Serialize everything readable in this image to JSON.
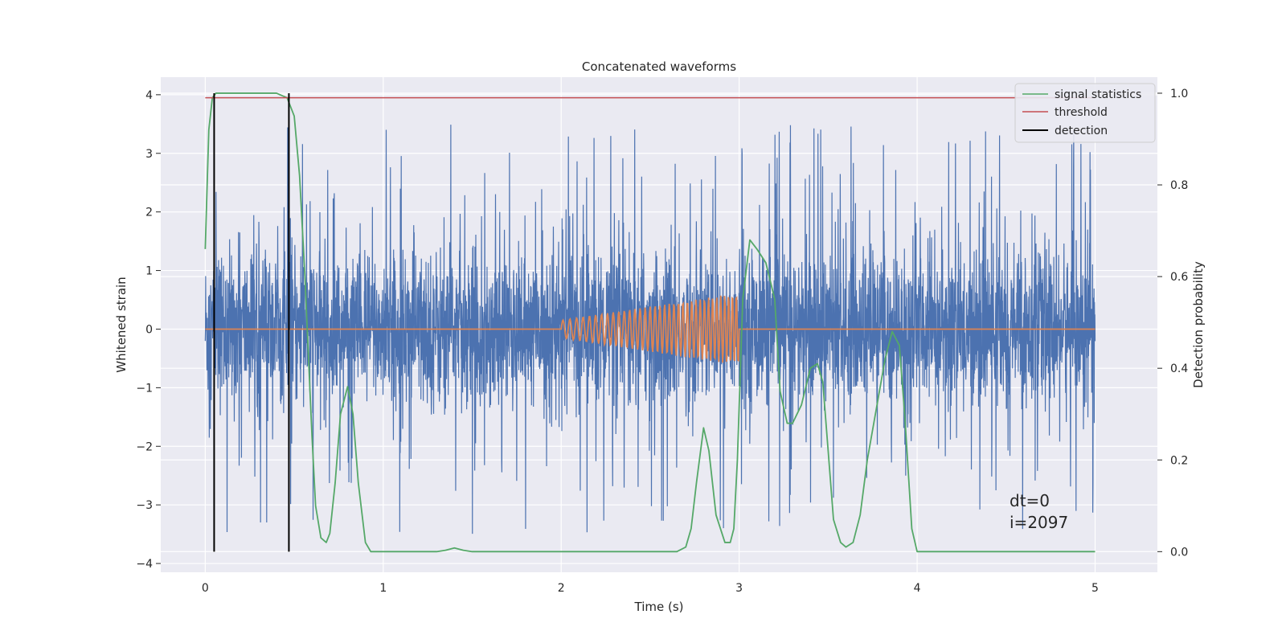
{
  "chart_data": {
    "type": "line",
    "title": "Concatenated waveforms",
    "xlabel": "Time (s)",
    "ylabel_left": "Whitened strain",
    "ylabel_right": "Detection probability",
    "xlim": [
      -0.25,
      5.35
    ],
    "ylim_left": [
      -4.15,
      4.3
    ],
    "ylim_right": [
      -0.045,
      1.035
    ],
    "x_ticks": [
      0,
      1,
      2,
      3,
      4,
      5
    ],
    "y_left_ticks": [
      4,
      3,
      2,
      1,
      0,
      -1,
      -2,
      -3,
      -4
    ],
    "y_left_tick_labels": [
      "4",
      "3",
      "2",
      "1",
      "0",
      "−1",
      "−2",
      "−3",
      "−4"
    ],
    "y_right_ticks": [
      1.0,
      0.8,
      0.6,
      0.4,
      0.2,
      0.0
    ],
    "y_right_tick_labels": [
      "1.0",
      "0.8",
      "0.6",
      "0.4",
      "0.2",
      "0.0"
    ],
    "grid": true,
    "legend_position": "top-right",
    "series": [
      {
        "name": "",
        "role": "whitened strain noise",
        "axis": "left",
        "color": "#4c72b0",
        "x_range": [
          0,
          5
        ],
        "core_amplitude": 0.65,
        "peak_min": -3.7,
        "peak_max": 3.9
      },
      {
        "name": "",
        "role": "injected chirp",
        "axis": "left",
        "color": "#dd8452",
        "x_range": [
          0,
          5
        ],
        "chirp_x_range": [
          2,
          3
        ],
        "amplitude_start": 0.15,
        "amplitude_end": 0.62
      },
      {
        "name": "signal statistics",
        "axis": "right",
        "color": "#55a868",
        "x": [
          0.0,
          0.02,
          0.04,
          0.06,
          0.1,
          0.2,
          0.4,
          0.46,
          0.5,
          0.53,
          0.56,
          0.6,
          0.62,
          0.65,
          0.68,
          0.7,
          0.73,
          0.76,
          0.8,
          0.83,
          0.86,
          0.9,
          0.93,
          0.97,
          1.2,
          1.3,
          1.35,
          1.4,
          1.45,
          1.5,
          1.7,
          2.0,
          2.5,
          2.65,
          2.7,
          2.73,
          2.76,
          2.8,
          2.83,
          2.87,
          2.92,
          2.95,
          2.97,
          2.99,
          3.02,
          3.06,
          3.1,
          3.15,
          3.2,
          3.23,
          3.27,
          3.3,
          3.35,
          3.4,
          3.44,
          3.47,
          3.5,
          3.53,
          3.57,
          3.6,
          3.64,
          3.68,
          3.72,
          3.77,
          3.82,
          3.86,
          3.9,
          3.93,
          3.97,
          4.0,
          4.5,
          5.0
        ],
        "y": [
          0.66,
          0.92,
          0.99,
          1.0,
          1.0,
          1.0,
          1.0,
          0.99,
          0.95,
          0.82,
          0.6,
          0.25,
          0.1,
          0.03,
          0.02,
          0.04,
          0.15,
          0.3,
          0.36,
          0.3,
          0.15,
          0.02,
          0.0,
          0.0,
          0.0,
          0.0,
          0.003,
          0.008,
          0.003,
          0.0,
          0.0,
          0.0,
          0.0,
          0.0,
          0.01,
          0.05,
          0.15,
          0.27,
          0.22,
          0.08,
          0.02,
          0.02,
          0.05,
          0.2,
          0.55,
          0.68,
          0.66,
          0.63,
          0.55,
          0.35,
          0.28,
          0.28,
          0.32,
          0.4,
          0.41,
          0.37,
          0.22,
          0.07,
          0.02,
          0.01,
          0.02,
          0.08,
          0.2,
          0.31,
          0.42,
          0.48,
          0.45,
          0.3,
          0.05,
          0.0,
          0.0,
          0.0
        ]
      },
      {
        "name": "threshold",
        "axis": "right",
        "color": "#c44e52",
        "x": [
          0,
          5
        ],
        "y": [
          0.99,
          0.99
        ]
      },
      {
        "name": "detection",
        "axis": "right",
        "color": "#000000",
        "type": "vlines",
        "x": [
          0.05,
          0.47
        ],
        "y_range": [
          0.0,
          1.0
        ]
      }
    ],
    "annotations": [
      "dt=0",
      "i=2097"
    ]
  },
  "colors": {
    "plot_background": "#eaeaf2",
    "grid": "#ffffff",
    "strain": "#4c72b0",
    "chirp": "#dd8452",
    "statistic": "#55a868",
    "threshold": "#c44e52",
    "detection": "#000000"
  }
}
